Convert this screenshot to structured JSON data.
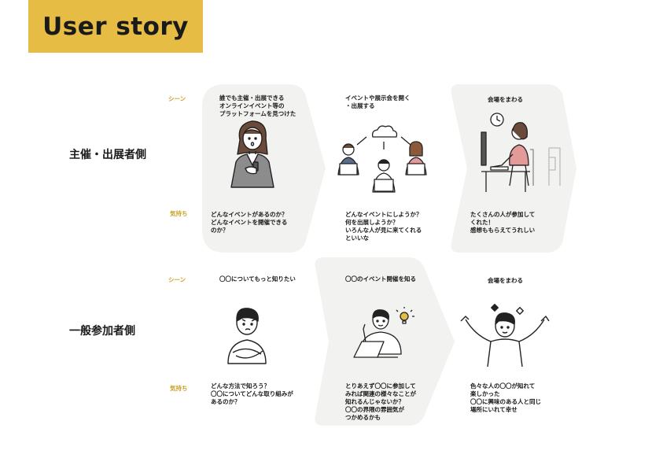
{
  "header": {
    "title": "User story"
  },
  "labels": {
    "scene": "シーン",
    "feeling": "気持ち"
  },
  "rows": [
    {
      "label": "主催・出展者側",
      "steps": [
        {
          "scene": "誰でも主催・出展できる\nオンラインイベント等の\nプラットフォームを見つけた",
          "feeling": "どんなイベントがあるのか？\nどんなイベントを開催できる\nのか？"
        },
        {
          "scene": "イベントや展示会を開く\n・出展する",
          "feeling": "どんなイベントにしようか？\n何を出展しようか？\nいろんな人が見に来てくれる\nといいな"
        },
        {
          "scene": "会場をまわる",
          "feeling": "たくさんの人が参加して\nくれた！\n感想ももらえてうれしい"
        }
      ]
    },
    {
      "label": "一般参加者側",
      "steps": [
        {
          "scene": "〇〇についてもっと知りたい",
          "feeling": "どんな方法で知ろう？\n〇〇についてどんな取り組みが\nあるのか？"
        },
        {
          "scene": "〇〇のイベント開催を知る",
          "feeling": "とりあえず〇〇に参加して\nみれば関連の様々なことが\n知れるんじゃないか？\n〇〇の界隈の雰囲気が\nつかめるかも"
        },
        {
          "scene": "会場をまわる",
          "feeling": "色々な人の〇〇が知れて\n楽しかった\n〇〇に興味のある人と同じ\n場所にいれて幸せ"
        }
      ]
    }
  ],
  "colors": {
    "accent": "#E6BC45",
    "panel": "#F2F2F0",
    "ink": "#222222"
  },
  "icons": [
    "cloud-icon",
    "clock-icon",
    "lightbulb-icon",
    "computer-icon",
    "laptop-icon"
  ]
}
